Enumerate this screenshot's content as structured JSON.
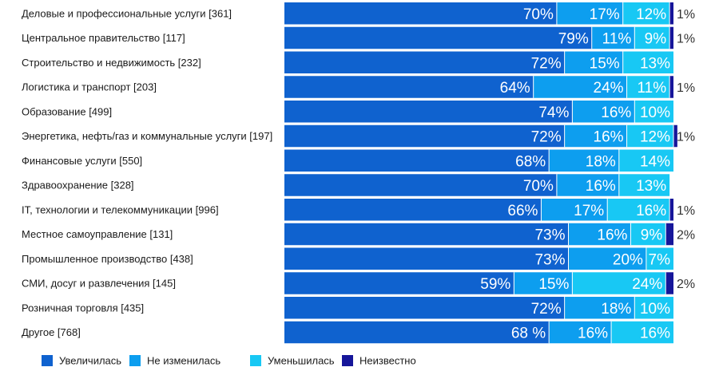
{
  "colors": {
    "increased": "#0f62cf",
    "unchanged": "#0d9eef",
    "decreased": "#18c8f4",
    "unknown": "#16169a",
    "divider": "#ffffff"
  },
  "chart_data": {
    "type": "bar",
    "orientation": "horizontal",
    "stacked": true,
    "percent": true,
    "xlim": [
      0,
      100
    ],
    "grid": false,
    "legend_position": "bottom-left",
    "categories": [
      "Деловые и профессиональные услуги [361]",
      "Центральное правительство [117]",
      "Строительство и недвижимость [232]",
      "Логистика и транспорт [203]",
      "Образование [499]",
      "Энергетика, нефть/газ и коммунальные услуги [197]",
      "Финансовые услуги [550]",
      "Здравоохранение [328]",
      "IT, технологии и телекоммуникации [996]",
      "Местное самоуправление [131]",
      "Промышленное производство [438]",
      "СМИ, досуг и развлечения [145]",
      "Розничная торговля [435]",
      "Другое [768]"
    ],
    "series": [
      {
        "name": "Увеличилась",
        "values": [
          70,
          79,
          72,
          64,
          74,
          72,
          68,
          70,
          66,
          73,
          73,
          59,
          72,
          68
        ],
        "labels": [
          "70%",
          "79%",
          "72%",
          "64%",
          "74%",
          "72%",
          "68%",
          "70%",
          "66%",
          "73%",
          "73%",
          "59%",
          "72%",
          "68 %"
        ]
      },
      {
        "name": "Не изменилась",
        "values": [
          17,
          11,
          15,
          24,
          16,
          16,
          18,
          16,
          17,
          16,
          20,
          15,
          18,
          16
        ],
        "labels": [
          "17%",
          "11%",
          "15%",
          "24%",
          "16%",
          "16%",
          "18%",
          "16%",
          "17%",
          "16%",
          "20%",
          "15%",
          "18%",
          "16%"
        ]
      },
      {
        "name": "Уменьшилась",
        "values": [
          12,
          9,
          13,
          11,
          10,
          12,
          14,
          13,
          16,
          9,
          7,
          24,
          10,
          16
        ],
        "labels": [
          "12%",
          "9%",
          "13%",
          "11%",
          "10%",
          "12%",
          "14%",
          "13%",
          "16%",
          "9%",
          "7%",
          "24%",
          "10%",
          "16%"
        ]
      },
      {
        "name": "Неизвестно",
        "values": [
          1,
          1,
          0,
          1,
          0,
          1,
          0,
          0,
          1,
          2,
          0,
          2,
          0,
          0
        ],
        "labels": [
          "1%",
          "1%",
          "",
          "1%",
          "",
          "1%",
          "",
          "",
          "1%",
          "2%",
          "",
          "2%",
          "",
          ""
        ]
      }
    ]
  }
}
